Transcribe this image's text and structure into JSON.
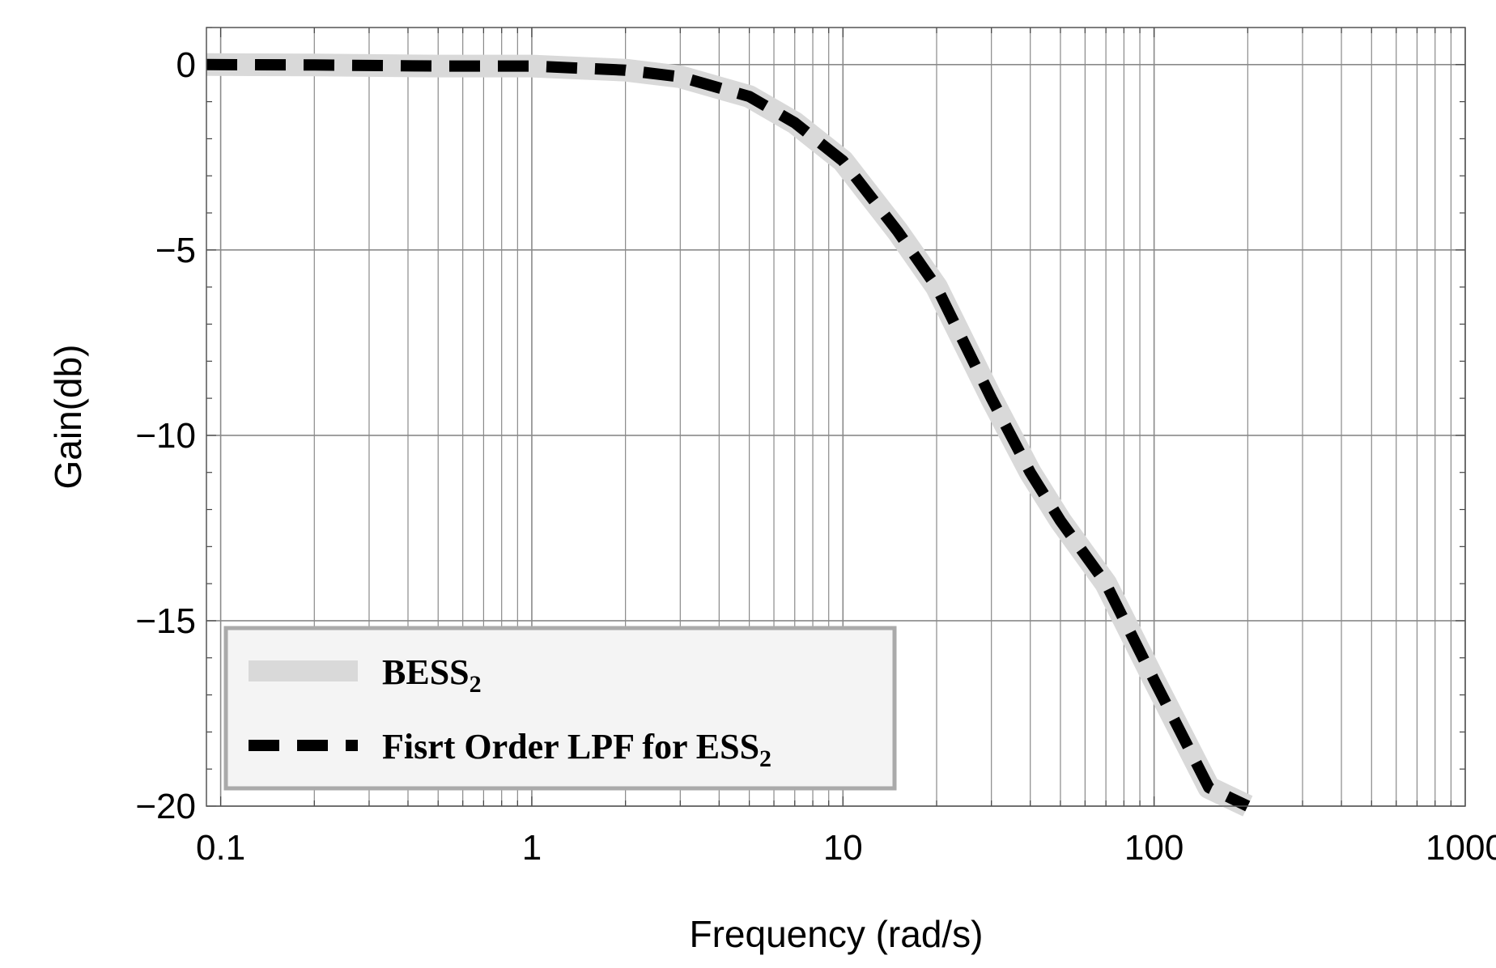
{
  "chart_data": {
    "type": "line",
    "title": "",
    "xlabel": "Frequency (rad/s)",
    "ylabel": "Gain(db)",
    "x_scale": "log",
    "xlim": [
      0.09,
      1000
    ],
    "ylim": [
      -20,
      1
    ],
    "grid": true,
    "x_ticks": [
      {
        "value": 0.1,
        "label": "0.1"
      },
      {
        "value": 1,
        "label": "1"
      },
      {
        "value": 10,
        "label": "10"
      },
      {
        "value": 100,
        "label": "100"
      },
      {
        "value": 1000,
        "label": "1000"
      }
    ],
    "y_ticks": [
      {
        "value": 0,
        "label": "0"
      },
      {
        "value": -5,
        "label": "−5"
      },
      {
        "value": -10,
        "label": "−10"
      },
      {
        "value": -15,
        "label": "−15"
      },
      {
        "value": -20,
        "label": "−20"
      }
    ],
    "legend_position": "bottom-left",
    "series": [
      {
        "name": "BESS",
        "name_subscript": "2",
        "color": "#d9d9d9",
        "style": "solid",
        "x": [
          0.09,
          0.2,
          0.5,
          1,
          2,
          3,
          5,
          7,
          10,
          15,
          20,
          30,
          40,
          50,
          70,
          100,
          150,
          200
        ],
        "y": [
          0,
          -0.01,
          -0.04,
          -0.04,
          -0.15,
          -0.33,
          -0.86,
          -1.57,
          -2.6,
          -4.5,
          -6.0,
          -9.0,
          -11.0,
          -12.3,
          -14.0,
          -16.6,
          -19.5,
          -20.0
        ]
      },
      {
        "name": "Fisrt Order LPF for ESS",
        "name_subscript": "2",
        "color": "#000000",
        "style": "dashed",
        "x": [
          0.09,
          0.2,
          0.5,
          1,
          2,
          3,
          5,
          7,
          10,
          15,
          20,
          30,
          40,
          50,
          70,
          100,
          150,
          200
        ],
        "y": [
          0,
          -0.01,
          -0.04,
          -0.04,
          -0.15,
          -0.33,
          -0.86,
          -1.57,
          -2.6,
          -4.5,
          -6.0,
          -9.0,
          -11.0,
          -12.3,
          -14.0,
          -16.6,
          -19.5,
          -20.0
        ]
      }
    ]
  }
}
